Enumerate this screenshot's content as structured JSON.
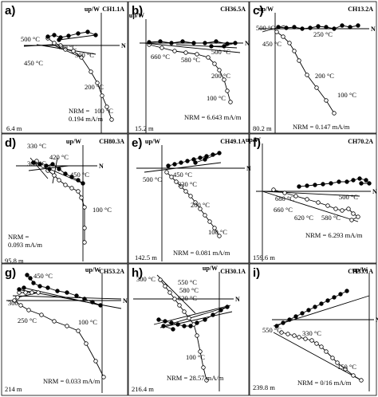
{
  "figure": {
    "axis_labels": {
      "vertical": "up/W",
      "horizontal": "N"
    },
    "panels": [
      {
        "letter": "a)",
        "core": "CH1.1A",
        "depth": "6.4 m",
        "nrm": [
          "NRM =",
          "0.194 mA/m"
        ],
        "temps": [
          "500 °C",
          "420 °C",
          "300 °C",
          "450 °C",
          "200 °C",
          "100 °C"
        ]
      },
      {
        "letter": "b)",
        "core": "CH36.5A",
        "depth": "15.2 m",
        "nrm": [
          "NRM = 6.643 mA/m"
        ],
        "temps": [
          "660 °C",
          "580 °C",
          "500 °C",
          "200 °C",
          "100 °C"
        ]
      },
      {
        "letter": "c)",
        "core": "CH13.2A",
        "depth": "80.2 m",
        "nrm": [
          "NRM = 0.147 mA/m"
        ],
        "temps": [
          "500 °C",
          "250 °C",
          "450 °C",
          "200 °C",
          "100 °C"
        ]
      },
      {
        "letter": "d)",
        "core": "CH80.3A",
        "depth": "95.8 m",
        "nrm": [
          "NRM =",
          "0.093 mA/m"
        ],
        "temps": [
          "330 °C",
          "420 °C",
          "300 °C",
          "450 °C",
          "100 °C"
        ]
      },
      {
        "letter": "e)",
        "core": "CH49.1A",
        "depth": "142.5 m",
        "nrm": [
          "NRM = 0.081 mA/m"
        ],
        "temps": [
          "450 °C",
          "500 °C",
          "330 °C",
          "200 °C",
          "100 °C"
        ]
      },
      {
        "letter": "f)",
        "core": "CH70.2A",
        "depth": "159.6 m",
        "nrm": [
          "NRM = 6.293 mA/m"
        ],
        "temps": [
          "680 °C",
          "500 °C",
          "660 °C",
          "620 °C",
          "580 °C"
        ]
      },
      {
        "letter": "g)",
        "core": "CH53.2A",
        "depth": "214 m",
        "nrm": [
          "NRM = 0.033 mA/m"
        ],
        "temps": [
          "450 °C",
          "300",
          "250 °C",
          "100 °C"
        ]
      },
      {
        "letter": "h)",
        "core": "CH30.1A",
        "depth": "216.4 m",
        "nrm": [
          "NRM = 28.57 mA/m"
        ],
        "temps": [
          "300 °C",
          "550 °C",
          "580 °C",
          "620 °C",
          "100 °C"
        ]
      },
      {
        "letter": "i)",
        "core": "CH33.1A",
        "depth": "239.8 m",
        "nrm": [
          "NRM = 0/16 mA/m"
        ],
        "temps": [
          "550 °C",
          "330 °C",
          "150 °C"
        ]
      }
    ]
  }
}
